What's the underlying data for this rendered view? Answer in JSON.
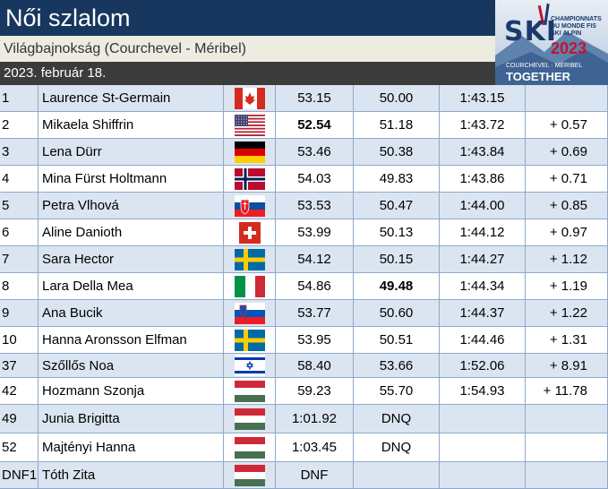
{
  "header": {
    "title": "Női szlalom",
    "subtitle": "Világbajnokság (Courchevel - Méribel)",
    "date": "2023. február 18."
  },
  "logo": {
    "ski": "SKI",
    "line1": "CHAMPIONNATS",
    "line2": "DU MONDE FIS",
    "line3": "SKI ALPIN",
    "year": "2023",
    "place": "COURCHEVEL · MÉRIBEL",
    "tagline": "TOGETHER"
  },
  "rows": [
    {
      "rank": "1",
      "name": "Laurence St-Germain",
      "flag": "canada-flag",
      "run1": "53.15",
      "run2": "50.00",
      "total": "1:43.15",
      "diff": ""
    },
    {
      "rank": "2",
      "name": "Mikaela Shiffrin",
      "flag": "usa-flag",
      "run1": "52.54",
      "run2": "51.18",
      "total": "1:43.72",
      "diff": "+ 0.57",
      "run1_best": true
    },
    {
      "rank": "3",
      "name": "Lena Dürr",
      "flag": "germany-flag",
      "run1": "53.46",
      "run2": "50.38",
      "total": "1:43.84",
      "diff": "+ 0.69"
    },
    {
      "rank": "4",
      "name": "Mina Fürst Holtmann",
      "flag": "norway-flag",
      "run1": "54.03",
      "run2": "49.83",
      "total": "1:43.86",
      "diff": "+ 0.71"
    },
    {
      "rank": "5",
      "name": "Petra Vlhová",
      "flag": "slovakia-flag",
      "run1": "53.53",
      "run2": "50.47",
      "total": "1:44.00",
      "diff": "+ 0.85"
    },
    {
      "rank": "6",
      "name": "Aline Danioth",
      "flag": "switzerland-flag",
      "run1": "53.99",
      "run2": "50.13",
      "total": "1:44.12",
      "diff": "+ 0.97"
    },
    {
      "rank": "7",
      "name": "Sara Hector",
      "flag": "sweden-flag",
      "run1": "54.12",
      "run2": "50.15",
      "total": "1:44.27",
      "diff": "+ 1.12"
    },
    {
      "rank": "8",
      "name": "Lara Della Mea",
      "flag": "italy-flag",
      "run1": "54.86",
      "run2": "49.48",
      "total": "1:44.34",
      "diff": "+ 1.19",
      "run2_best": true
    },
    {
      "rank": "9",
      "name": "Ana Bucik",
      "flag": "slovenia-flag",
      "run1": "53.77",
      "run2": "50.60",
      "total": "1:44.37",
      "diff": "+ 1.22"
    },
    {
      "rank": "10",
      "name": "Hanna Aronsson Elfman",
      "flag": "sweden-flag",
      "run1": "53.95",
      "run2": "50.51",
      "total": "1:44.46",
      "diff": "+ 1.31"
    },
    {
      "rank": "37",
      "name": "Szőllős Noa",
      "flag": "israel-flag",
      "run1": "58.40",
      "run2": "53.66",
      "total": "1:52.06",
      "diff": "+ 8.91"
    },
    {
      "rank": "42",
      "name": "Hozmann Szonja",
      "flag": "hungary-flag",
      "run1": "59.23",
      "run2": "55.70",
      "total": "1:54.93",
      "diff": "+ 11.78"
    },
    {
      "rank": "49",
      "name": "Junia Brigitta",
      "flag": "hungary-flag",
      "run1": "1:01.92",
      "run2": "DNQ",
      "total": "",
      "diff": ""
    },
    {
      "rank": "52",
      "name": "Majtényi Hanna",
      "flag": "hungary-flag",
      "run1": "1:03.45",
      "run2": "DNQ",
      "total": "",
      "diff": ""
    },
    {
      "rank": "DNF1",
      "name": "Tóth Zita",
      "flag": "hungary-flag",
      "run1": "DNF",
      "run2": "",
      "total": "",
      "diff": ""
    }
  ],
  "colors": {
    "title_bg": "#17375e",
    "subtitle_bg": "#eeece1",
    "date_bg": "#3b3b3b",
    "row_stripe": "#dbe5f1",
    "grid": "#8ea9c9"
  }
}
